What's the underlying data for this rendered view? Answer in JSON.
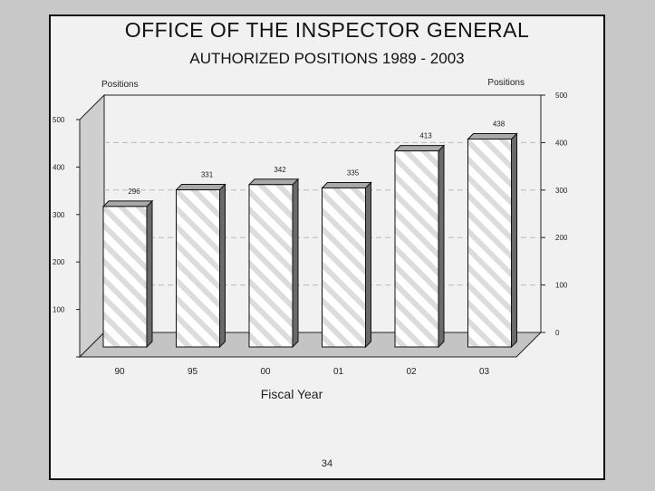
{
  "slide": {
    "title": "OFFICE OF THE INSPECTOR GENERAL",
    "subtitle": "AUTHORIZED POSITIONS  1989 - 2003",
    "page_number": "34"
  },
  "chart_data": {
    "type": "bar",
    "title": "OFFICE OF THE INSPECTOR GENERAL",
    "subtitle": "AUTHORIZED POSITIONS  1989 - 2003",
    "xlabel": "Fiscal Year",
    "ylabel_left": "Positions",
    "ylabel_right": "Positions",
    "categories": [
      "90",
      "95",
      "00",
      "01",
      "02",
      "03"
    ],
    "values": [
      296,
      331,
      342,
      335,
      413,
      438
    ],
    "data_labels": [
      "296",
      "331",
      "342",
      "335",
      "413",
      "438"
    ],
    "ylim": [
      0,
      500
    ],
    "left_ticks": [
      "500",
      "400",
      "300",
      "200",
      "100"
    ],
    "right_ticks": [
      "500",
      "400",
      "300",
      "200",
      "100",
      "0"
    ],
    "grid": true,
    "style": "3d-hatched",
    "colors": {
      "bar_face": "#ffffff",
      "bar_hatch": "#d8d8d8",
      "bar_side": "#6a6a6a",
      "bar_top": "#a9a9a9",
      "wall": "#cfcfcf",
      "floor": "#c4c4c4",
      "background": "#f1f1f1",
      "frame": "#111111"
    }
  }
}
